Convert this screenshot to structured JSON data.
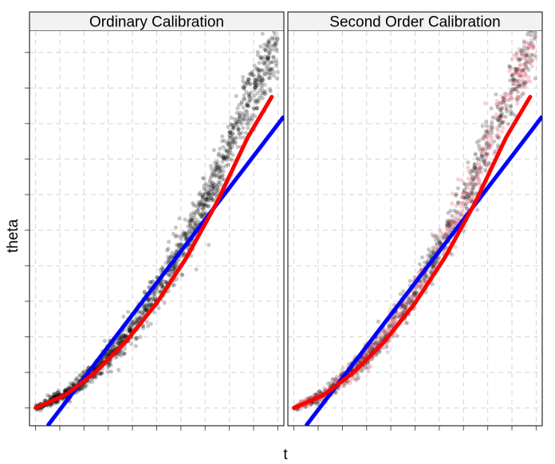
{
  "chart_data": {
    "type": "scatter",
    "xlabel": "t",
    "ylabel": "theta",
    "xlim": [
      -0.1,
      4.1
    ],
    "ylim": [
      -0.5,
      10.6
    ],
    "x_ticks": [
      0,
      0.4,
      0.8,
      1.2,
      1.6,
      2.0,
      2.4,
      2.8,
      3.2,
      3.6,
      4.0
    ],
    "y_ticks": [
      0,
      1,
      2,
      3,
      4,
      5,
      6,
      7,
      8,
      9,
      10
    ],
    "tick_labels_shown": false,
    "grid": true,
    "colors": {
      "points_black": "#000000",
      "points_pink": "#e87a8c",
      "linear_fit": "#0000ff",
      "quadratic_fit": "#ff0000",
      "strip_background": "#f2f2f2",
      "grid": "#d4d4d4"
    },
    "panels": [
      {
        "title": "Ordinary Calibration",
        "point_colors": [
          "#000000"
        ],
        "blue_line": {
          "x": [
            0.2,
            4.1
          ],
          "y": [
            -0.5,
            8.2
          ]
        },
        "red_curve": {
          "x": [
            0,
            0.5,
            1.0,
            1.5,
            2.0,
            2.5,
            3.0,
            3.5,
            3.9
          ],
          "y": [
            0,
            0.37,
            1.02,
            1.88,
            2.95,
            4.25,
            5.8,
            7.6,
            8.75
          ]
        },
        "scatter_summary": {
          "x_range": [
            0,
            4.0
          ],
          "trend": "quadratic",
          "max_point": [
            3.8,
            10.05
          ]
        }
      },
      {
        "title": "Second Order Calibration",
        "point_colors": [
          "#000000",
          "#e87a8c"
        ],
        "blue_line": {
          "x": [
            0.2,
            4.1
          ],
          "y": [
            -0.5,
            8.2
          ]
        },
        "red_curve": {
          "x": [
            0,
            0.5,
            1.0,
            1.5,
            2.0,
            2.5,
            3.0,
            3.5,
            3.9
          ],
          "y": [
            0,
            0.37,
            1.02,
            1.88,
            2.95,
            4.25,
            5.8,
            7.6,
            8.75
          ]
        },
        "scatter_summary": {
          "x_range": [
            0,
            4.0
          ],
          "trend": "quadratic",
          "max_point": [
            3.8,
            10.05
          ]
        }
      }
    ]
  }
}
